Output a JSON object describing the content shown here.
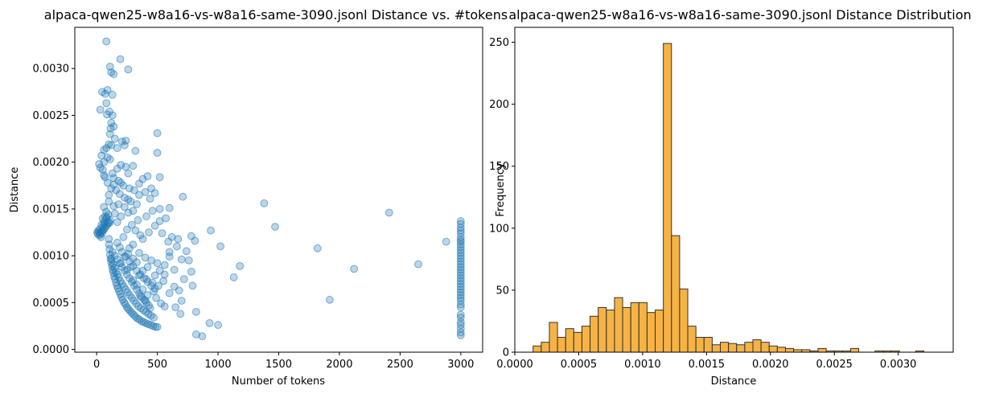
{
  "chart_data": [
    {
      "type": "scatter",
      "title": "alpaca-qwen25-w8a16-vs-w8a16-same-3090.jsonl Distance vs. #tokens",
      "xlabel": "Number of tokens",
      "ylabel": "Distance",
      "xlim": [
        -180,
        3180
      ],
      "ylim": [
        -3e-05,
        0.00344
      ],
      "xticks": [
        0,
        500,
        1000,
        1500,
        2000,
        2500,
        3000
      ],
      "xtick_labels": [
        "0",
        "500",
        "1000",
        "1500",
        "2000",
        "2500",
        "3000"
      ],
      "yticks": [
        0.0,
        0.0005,
        0.001,
        0.0015,
        0.002,
        0.0025,
        0.003
      ],
      "ytick_labels": [
        "0.0000",
        "0.0005",
        "0.0010",
        "0.0015",
        "0.0020",
        "0.0025",
        "0.0030"
      ],
      "marker_color": "#1f77b4",
      "marker_alpha": 0.3,
      "points": [
        [
          80,
          0.00329
        ],
        [
          195,
          0.0031
        ],
        [
          110,
          0.00302
        ],
        [
          260,
          0.00299
        ],
        [
          120,
          0.00296
        ],
        [
          140,
          0.00294
        ],
        [
          90,
          0.00277
        ],
        [
          45,
          0.00275
        ],
        [
          70,
          0.00273
        ],
        [
          130,
          0.00272
        ],
        [
          80,
          0.00263
        ],
        [
          30,
          0.00256
        ],
        [
          105,
          0.00254
        ],
        [
          85,
          0.00251
        ],
        [
          130,
          0.0025
        ],
        [
          120,
          0.00242
        ],
        [
          140,
          0.00238
        ],
        [
          115,
          0.00236
        ],
        [
          500,
          0.00231
        ],
        [
          110,
          0.0023
        ],
        [
          240,
          0.00223
        ],
        [
          210,
          0.00222
        ],
        [
          150,
          0.00225
        ],
        [
          230,
          0.00218
        ],
        [
          100,
          0.00219
        ],
        [
          120,
          0.00218
        ],
        [
          170,
          0.00215
        ],
        [
          80,
          0.00215
        ],
        [
          60,
          0.00213
        ],
        [
          320,
          0.00212
        ],
        [
          500,
          0.0021
        ],
        [
          40,
          0.00207
        ],
        [
          90,
          0.00205
        ],
        [
          110,
          0.00203
        ],
        [
          60,
          0.002
        ],
        [
          20,
          0.00198
        ],
        [
          200,
          0.00197
        ],
        [
          240,
          0.00195
        ],
        [
          300,
          0.00196
        ],
        [
          30,
          0.00194
        ],
        [
          170,
          0.00193
        ],
        [
          50,
          0.00192
        ],
        [
          420,
          0.00185
        ],
        [
          520,
          0.00184
        ],
        [
          130,
          0.00188
        ],
        [
          380,
          0.00182
        ],
        [
          260,
          0.00188
        ],
        [
          60,
          0.00186
        ],
        [
          350,
          0.00177
        ],
        [
          200,
          0.00178
        ],
        [
          140,
          0.00176
        ],
        [
          450,
          0.00172
        ],
        [
          400,
          0.00168
        ],
        [
          480,
          0.00167
        ],
        [
          710,
          0.00163
        ],
        [
          440,
          0.00161
        ],
        [
          1380,
          0.00156
        ],
        [
          280,
          0.00158
        ],
        [
          330,
          0.00155
        ],
        [
          100,
          0.00158
        ],
        [
          60,
          0.00152
        ],
        [
          230,
          0.00152
        ],
        [
          520,
          0.0015
        ],
        [
          600,
          0.00151
        ],
        [
          2410,
          0.00146
        ],
        [
          1470,
          0.00131
        ],
        [
          940,
          0.00127
        ],
        [
          780,
          0.00121
        ],
        [
          810,
          0.00116
        ],
        [
          670,
          0.00118
        ],
        [
          1020,
          0.0011
        ],
        [
          1820,
          0.00108
        ],
        [
          2880,
          0.00115
        ],
        [
          2650,
          0.00091
        ],
        [
          2120,
          0.00086
        ],
        [
          1180,
          0.00089
        ],
        [
          1130,
          0.00077
        ],
        [
          1920,
          0.00053
        ],
        [
          780,
          0.00083
        ],
        [
          720,
          0.00075
        ],
        [
          790,
          0.00068
        ],
        [
          680,
          0.00063
        ],
        [
          700,
          0.00052
        ],
        [
          820,
          0.0004
        ],
        [
          650,
          0.00045
        ],
        [
          690,
          0.00038
        ],
        [
          820,
          0.00016
        ],
        [
          870,
          0.00014
        ],
        [
          930,
          0.00028
        ],
        [
          1000,
          0.00026
        ],
        [
          560,
          0.0009
        ],
        [
          600,
          0.00099
        ],
        [
          640,
          0.00085
        ],
        [
          590,
          0.00115
        ],
        [
          540,
          0.00124
        ],
        [
          620,
          0.0012
        ],
        [
          570,
          0.0014
        ],
        [
          480,
          0.00132
        ],
        [
          430,
          0.00125
        ],
        [
          380,
          0.00118
        ],
        [
          320,
          0.00127
        ],
        [
          290,
          0.00133
        ],
        [
          250,
          0.00128
        ],
        [
          220,
          0.0012
        ],
        [
          170,
          0.00136
        ],
        [
          150,
          0.00145
        ],
        [
          200,
          0.00142
        ],
        [
          260,
          0.00146
        ],
        [
          340,
          0.00138
        ],
        [
          410,
          0.00142
        ],
        [
          460,
          0.00148
        ],
        [
          520,
          0.00137
        ],
        [
          360,
          0.00122
        ],
        [
          300,
          0.00112
        ],
        [
          270,
          0.00108
        ],
        [
          350,
          0.00103
        ],
        [
          400,
          0.00098
        ],
        [
          450,
          0.00095
        ],
        [
          500,
          0.00092
        ],
        [
          420,
          0.00088
        ],
        [
          380,
          0.00084
        ],
        [
          330,
          0.00093
        ],
        [
          300,
          0.00097
        ],
        [
          260,
          0.00102
        ],
        [
          230,
          0.00099
        ],
        [
          280,
          0.00088
        ],
        [
          350,
          0.00079
        ],
        [
          410,
          0.00075
        ],
        [
          460,
          0.00071
        ],
        [
          510,
          0.00068
        ],
        [
          550,
          0.00073
        ],
        [
          470,
          0.00062
        ],
        [
          420,
          0.00058
        ],
        [
          380,
          0.00064
        ],
        [
          330,
          0.00069
        ],
        [
          300,
          0.00074
        ],
        [
          250,
          0.00085
        ],
        [
          200,
          0.00092
        ],
        [
          490,
          0.00055
        ],
        [
          530,
          0.00049
        ],
        [
          560,
          0.00046
        ],
        [
          440,
          0.00044
        ],
        [
          400,
          0.00052
        ],
        [
          360,
          0.00057
        ],
        [
          600,
          0.0006
        ],
        [
          640,
          0.00067
        ],
        [
          480,
          0.00079
        ],
        [
          520,
          0.00084
        ],
        [
          560,
          0.0008
        ],
        [
          600,
          0.00104
        ],
        [
          660,
          0.0011
        ],
        [
          700,
          0.00096
        ],
        [
          740,
          0.00105
        ],
        [
          760,
          0.00095
        ],
        [
          180,
          0.0018
        ],
        [
          220,
          0.00175
        ],
        [
          270,
          0.00172
        ],
        [
          310,
          0.0017
        ],
        [
          350,
          0.00165
        ],
        [
          230,
          0.00162
        ],
        [
          190,
          0.00166
        ],
        [
          160,
          0.0017
        ],
        [
          120,
          0.00172
        ],
        [
          100,
          0.00165
        ],
        [
          90,
          0.00178
        ],
        [
          70,
          0.00184
        ],
        [
          140,
          0.00183
        ],
        [
          260,
          0.0016
        ],
        [
          300,
          0.00148
        ],
        [
          180,
          0.00155
        ],
        [
          140,
          0.00153
        ],
        [
          20,
          0.00125
        ],
        [
          30,
          0.00124
        ],
        [
          40,
          0.00126
        ],
        [
          50,
          0.00127
        ],
        [
          60,
          0.00128
        ],
        [
          70,
          0.0013
        ],
        [
          80,
          0.00132
        ],
        [
          90,
          0.00134
        ],
        [
          100,
          0.00136
        ],
        [
          110,
          0.00138
        ],
        [
          60,
          0.00136
        ],
        [
          70,
          0.00142
        ],
        [
          80,
          0.00147
        ],
        [
          50,
          0.0014
        ],
        [
          40,
          0.00133
        ],
        [
          30,
          0.00129
        ],
        [
          10,
          0.00123
        ],
        [
          5,
          0.00125
        ],
        [
          15,
          0.00127
        ],
        [
          25,
          0.00122
        ],
        [
          35,
          0.0012
        ],
        [
          45,
          0.00124
        ],
        [
          55,
          0.00131
        ],
        [
          65,
          0.00134
        ],
        [
          75,
          0.00139
        ],
        [
          85,
          0.00141
        ],
        [
          95,
          0.00144
        ],
        [
          105,
          0.00135
        ],
        [
          100,
          0.00118
        ],
        [
          103,
          0.00112
        ],
        [
          106,
          0.00107
        ],
        [
          110,
          0.00101
        ],
        [
          115,
          0.00097
        ],
        [
          120,
          0.00093
        ],
        [
          126,
          0.00089
        ],
        [
          132,
          0.00085
        ],
        [
          138,
          0.00082
        ],
        [
          145,
          0.00078
        ],
        [
          152,
          0.00075
        ],
        [
          160,
          0.00071
        ],
        [
          168,
          0.00068
        ],
        [
          176,
          0.00065
        ],
        [
          185,
          0.00062
        ],
        [
          195,
          0.00059
        ],
        [
          205,
          0.00056
        ],
        [
          215,
          0.00053
        ],
        [
          226,
          0.0005
        ],
        [
          238,
          0.00048
        ],
        [
          250,
          0.00045
        ],
        [
          262,
          0.00043
        ],
        [
          275,
          0.00041
        ],
        [
          290,
          0.00039
        ],
        [
          305,
          0.00037
        ],
        [
          320,
          0.00035
        ],
        [
          336,
          0.00033
        ],
        [
          352,
          0.00032
        ],
        [
          370,
          0.0003
        ],
        [
          388,
          0.00029
        ],
        [
          406,
          0.00028
        ],
        [
          425,
          0.00027
        ],
        [
          445,
          0.00026
        ],
        [
          465,
          0.00025
        ],
        [
          485,
          0.00024
        ],
        [
          500,
          0.00024
        ],
        [
          122,
          0.00096
        ],
        [
          135,
          0.00091
        ],
        [
          148,
          0.00087
        ],
        [
          158,
          0.00083
        ],
        [
          170,
          0.0008
        ],
        [
          182,
          0.00077
        ],
        [
          195,
          0.00073
        ],
        [
          210,
          0.0007
        ],
        [
          224,
          0.00067
        ],
        [
          240,
          0.00064
        ],
        [
          256,
          0.00061
        ],
        [
          272,
          0.00058
        ],
        [
          290,
          0.00055
        ],
        [
          308,
          0.00052
        ],
        [
          326,
          0.00049
        ],
        [
          345,
          0.00046
        ],
        [
          365,
          0.00044
        ],
        [
          385,
          0.00042
        ],
        [
          405,
          0.0004
        ],
        [
          426,
          0.00038
        ],
        [
          448,
          0.00036
        ],
        [
          470,
          0.00034
        ],
        [
          130,
          0.00104
        ],
        [
          150,
          0.001
        ],
        [
          170,
          0.00096
        ],
        [
          190,
          0.00092
        ],
        [
          210,
          0.00088
        ],
        [
          230,
          0.00084
        ],
        [
          250,
          0.0008
        ],
        [
          270,
          0.00076
        ],
        [
          290,
          0.00072
        ],
        [
          310,
          0.00068
        ],
        [
          330,
          0.00064
        ],
        [
          350,
          0.0006
        ],
        [
          370,
          0.00056
        ],
        [
          390,
          0.00053
        ],
        [
          410,
          0.0005
        ],
        [
          430,
          0.00047
        ],
        [
          170,
          0.00114
        ],
        [
          190,
          0.00109
        ],
        [
          210,
          0.00104
        ],
        [
          240,
          0.00099
        ],
        [
          270,
          0.00094
        ],
        [
          300,
          0.00089
        ],
        [
          330,
          0.00084
        ],
        [
          360,
          0.0008
        ],
        [
          390,
          0.00076
        ],
        [
          420,
          0.00072
        ],
        [
          450,
          0.00068
        ],
        [
          480,
          0.00065
        ],
        [
          3000,
          0.00137
        ],
        [
          3000,
          0.00134
        ],
        [
          3000,
          0.0013
        ],
        [
          3000,
          0.00127
        ],
        [
          3000,
          0.00124
        ],
        [
          3000,
          0.0012
        ],
        [
          3000,
          0.00117
        ],
        [
          3000,
          0.00115
        ],
        [
          3000,
          0.00112
        ],
        [
          3000,
          0.00109
        ],
        [
          3000,
          0.00106
        ],
        [
          3000,
          0.00103
        ],
        [
          3000,
          0.001
        ],
        [
          3000,
          0.00097
        ],
        [
          3000,
          0.00094
        ],
        [
          3000,
          0.00091
        ],
        [
          3000,
          0.00088
        ],
        [
          3000,
          0.00085
        ],
        [
          3000,
          0.00082
        ],
        [
          3000,
          0.00079
        ],
        [
          3000,
          0.00076
        ],
        [
          3000,
          0.00073
        ],
        [
          3000,
          0.0007
        ],
        [
          3000,
          0.00067
        ],
        [
          3000,
          0.00064
        ],
        [
          3000,
          0.00061
        ],
        [
          3000,
          0.00058
        ],
        [
          3000,
          0.00055
        ],
        [
          3000,
          0.00052
        ],
        [
          3000,
          0.00048
        ],
        [
          3000,
          0.00045
        ],
        [
          3000,
          0.00037
        ],
        [
          3000,
          0.00034
        ],
        [
          3000,
          0.00029
        ],
        [
          3000,
          0.00026
        ],
        [
          3000,
          0.00022
        ],
        [
          3000,
          0.00018
        ],
        [
          3000,
          0.00015
        ]
      ]
    },
    {
      "type": "histogram",
      "title": "alpaca-qwen25-w8a16-vs-w8a16-same-3090.jsonl Distance Distribution",
      "xlabel": "Distance",
      "ylabel": "Frequency",
      "xlim": [
        0.0,
        0.00343
      ],
      "ylim": [
        0,
        262
      ],
      "xticks": [
        0.0,
        0.0005,
        0.001,
        0.0015,
        0.002,
        0.0025,
        0.003
      ],
      "xtick_labels": [
        "0.0000",
        "0.0005",
        "0.0010",
        "0.0015",
        "0.0020",
        "0.0025",
        "0.0030"
      ],
      "yticks": [
        0,
        50,
        100,
        150,
        200,
        250
      ],
      "ytick_labels": [
        "0",
        "50",
        "100",
        "150",
        "200",
        "250"
      ],
      "bar_color": "#f5a623",
      "bar_edge_color": "#333333",
      "bin_start": 0.000143,
      "bin_width": 6.37e-05,
      "counts": [
        5,
        8,
        24,
        12,
        19,
        16,
        21,
        29,
        36,
        34,
        44,
        36,
        40,
        40,
        32,
        34,
        249,
        94,
        51,
        21,
        12,
        12,
        6,
        8,
        7,
        6,
        8,
        10,
        8,
        5,
        4,
        3,
        2,
        2,
        1,
        3,
        1,
        1,
        1,
        3,
        0,
        0,
        1,
        1,
        1,
        0,
        0,
        1
      ]
    }
  ]
}
